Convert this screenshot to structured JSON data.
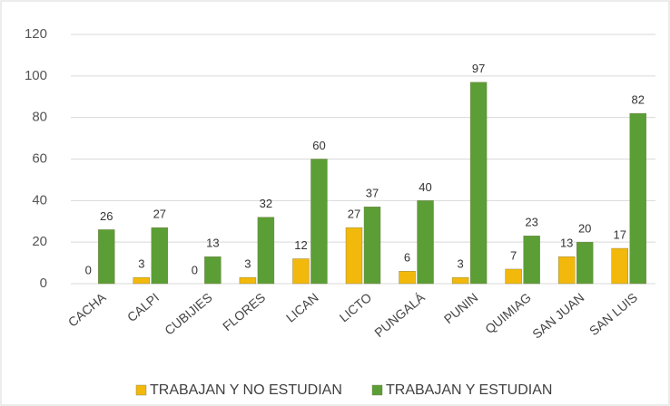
{
  "chart_data": {
    "type": "bar",
    "categories": [
      "CACHA",
      "CALPI",
      "CUBIJIES",
      "FLORES",
      "LICAN",
      "LICTO",
      "PUNGALÁ",
      "PUNIN",
      "QUIMIAG",
      "SAN JUAN",
      "SAN LUIS"
    ],
    "series": [
      {
        "name": "TRABAJAN Y NO ESTUDIAN",
        "color": "#f2b90c",
        "values": [
          0,
          3,
          0,
          3,
          12,
          27,
          6,
          3,
          7,
          13,
          17
        ]
      },
      {
        "name": "TRABAJAN Y ESTUDIAN",
        "color": "#5b9e35",
        "values": [
          26,
          27,
          13,
          32,
          60,
          37,
          40,
          97,
          23,
          20,
          82
        ]
      }
    ],
    "ylim": [
      0,
      120
    ],
    "yticks": [
      0,
      20,
      40,
      60,
      80,
      100,
      120
    ],
    "grid": true,
    "legend": "bottom"
  }
}
